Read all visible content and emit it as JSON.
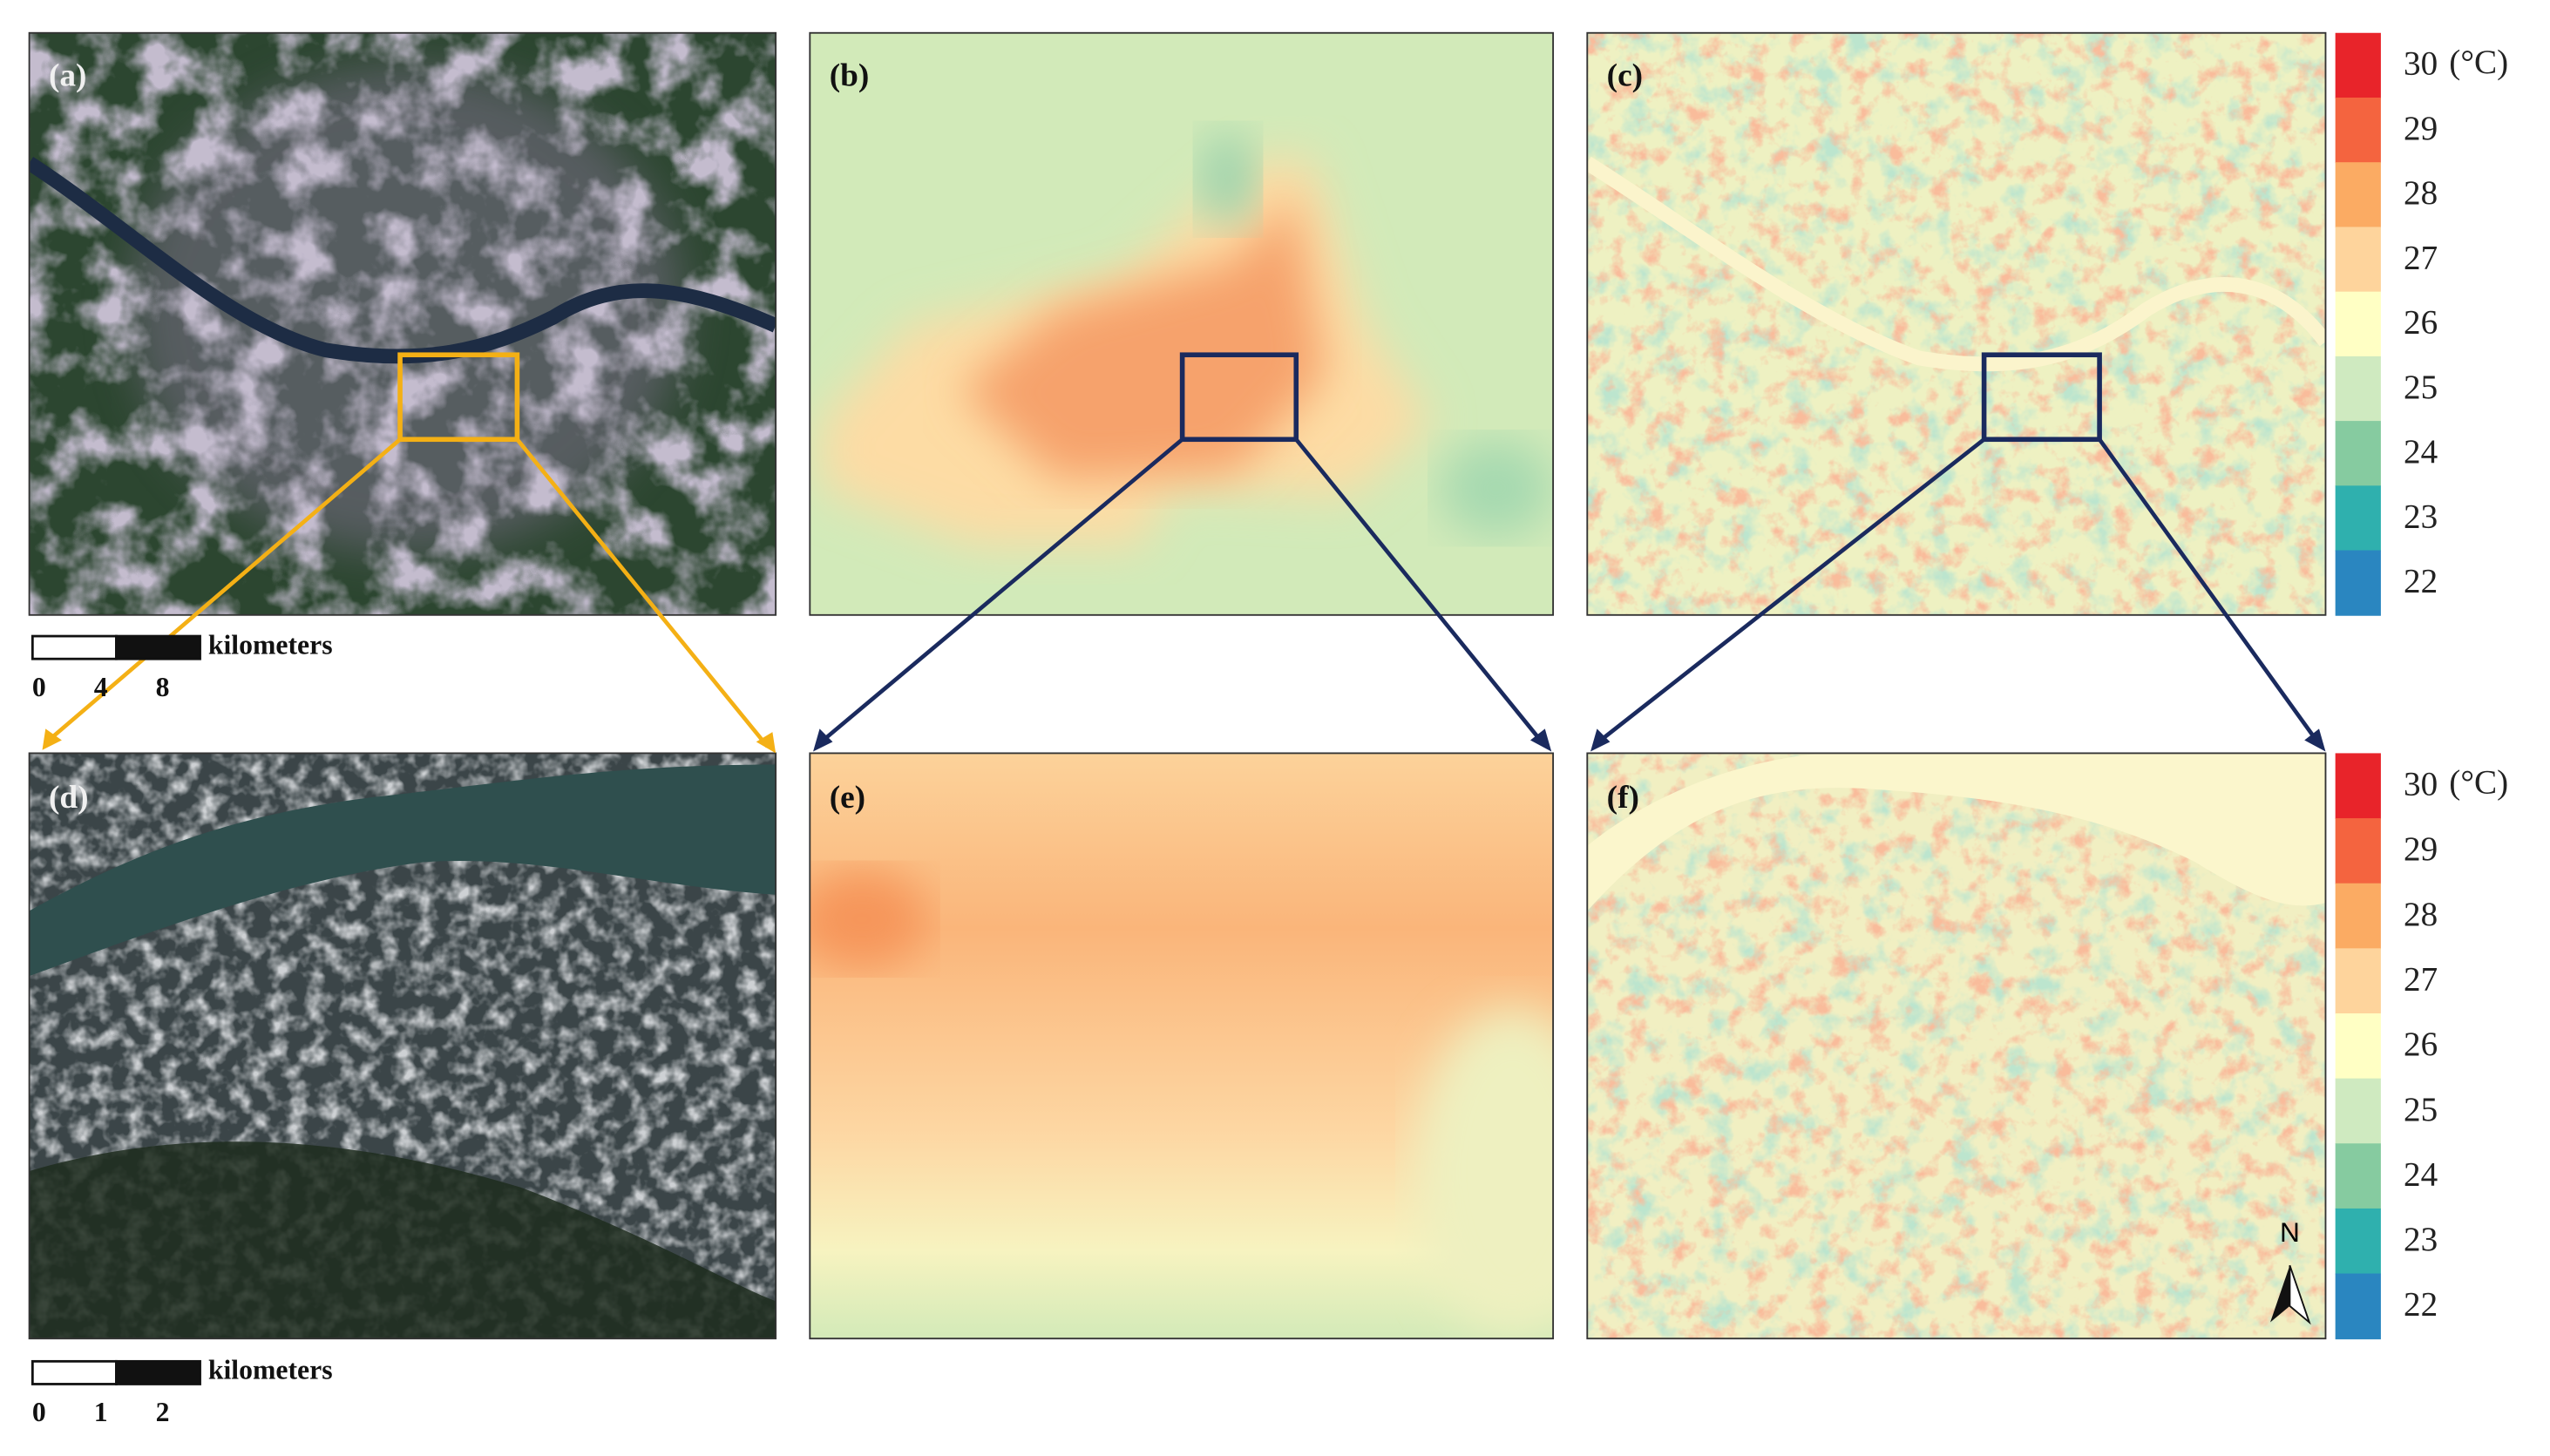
{
  "panels": [
    {
      "label": "(a)"
    },
    {
      "label": "(b)"
    },
    {
      "label": "(c)"
    },
    {
      "label": "(d)"
    },
    {
      "label": "(e)"
    },
    {
      "label": "(f)"
    }
  ],
  "colorbars": [
    {
      "unit": "(°C)",
      "levels": [
        {
          "value": 30,
          "color": "#e8242a"
        },
        {
          "value": 29,
          "color": "#f4643f"
        },
        {
          "value": 28,
          "color": "#fbab63"
        },
        {
          "value": 27,
          "color": "#fed49c"
        },
        {
          "value": 26,
          "color": "#ffffc4"
        },
        {
          "value": 25,
          "color": "#cfeac0"
        },
        {
          "value": 24,
          "color": "#86cba0"
        },
        {
          "value": 23,
          "color": "#2fb0ae"
        },
        {
          "value": 22,
          "color": "#2a86c0"
        }
      ]
    },
    {
      "unit": "(°C)",
      "levels": [
        {
          "value": 30,
          "color": "#e8242a"
        },
        {
          "value": 29,
          "color": "#f4643f"
        },
        {
          "value": 28,
          "color": "#fbab63"
        },
        {
          "value": 27,
          "color": "#fed49c"
        },
        {
          "value": 26,
          "color": "#ffffc4"
        },
        {
          "value": 25,
          "color": "#cfeac0"
        },
        {
          "value": 24,
          "color": "#86cba0"
        },
        {
          "value": 23,
          "color": "#2fb0ae"
        },
        {
          "value": 22,
          "color": "#2a86c0"
        }
      ]
    }
  ],
  "scalebars": [
    {
      "unit": "kilometers",
      "ticks": [
        0,
        4,
        8
      ]
    },
    {
      "unit": "kilometers",
      "ticks": [
        0,
        1,
        2
      ]
    }
  ],
  "north": "N"
}
